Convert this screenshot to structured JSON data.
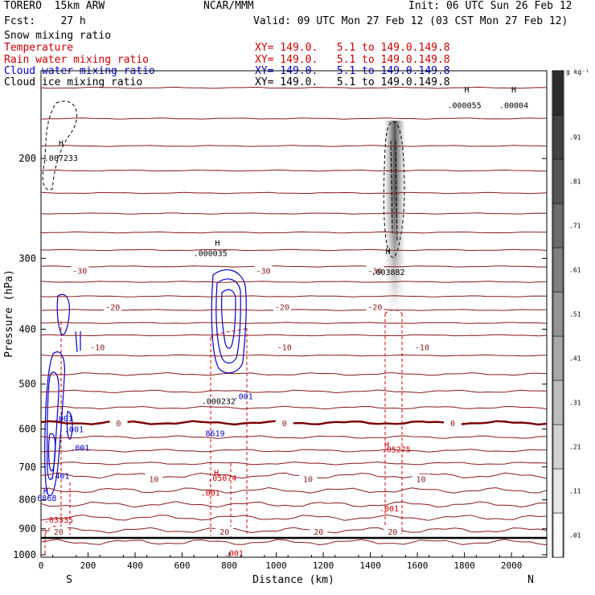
{
  "header": {
    "model": "TORERO  15km ARW",
    "forecast": "Fcst:    27 h",
    "center": "NCAR/MMM",
    "init": "Init: 06 UTC Sun 26 Feb 12",
    "valid": "Valid: 09 UTC Mon 27 Feb 12 (03 CST Mon 27 Feb 12)"
  },
  "fields": [
    {
      "name": "Snow mixing ratio",
      "xy": "",
      "color": "#000000"
    },
    {
      "name": "Temperature",
      "xy": "XY= 149.0.   5.1 to 149.0.149.8",
      "color": "#cc0000"
    },
    {
      "name": "Rain water mixing ratio",
      "xy": "XY= 149.0.   5.1 to 149.0.149.8",
      "color": "#cc0000"
    },
    {
      "name": "Cloud water mixing ratio",
      "xy": "XY= 149.0.   5.1 to 149.0.149.8",
      "color": "#0000cc"
    },
    {
      "name": "Cloud ice mixing ratio",
      "xy": "XY= 149.0.   5.1 to 149.0.149.8",
      "color": "#000000"
    }
  ],
  "chart_data": {
    "type": "cross-section",
    "xlabel": "Distance (km)",
    "ylabel": "Pressure (hPa)",
    "xlim": [
      0,
      2150
    ],
    "ylim": [
      1010,
      140
    ],
    "y_scale": "log",
    "xticks": [
      0,
      200,
      400,
      600,
      800,
      1000,
      1200,
      1400,
      1600,
      1800,
      2000
    ],
    "yticks": [
      200,
      300,
      400,
      500,
      600,
      700,
      800,
      900,
      1000
    ],
    "x_end_labels": {
      "left": "S",
      "right": "N"
    },
    "colorbar": {
      "unit": "g kg⁻¹",
      "levels": [
        ".01",
        ".11",
        ".21",
        ".31",
        ".41",
        ".51",
        ".61",
        ".71",
        ".81",
        ".91"
      ]
    },
    "temperature_contours": [
      {
        "label": "-30",
        "pressure": 315,
        "label_x": [
          165,
          945,
          1420
        ]
      },
      {
        "label": "-20",
        "pressure": 365,
        "label_x": [
          305,
          1025,
          1420
        ]
      },
      {
        "label": "-10",
        "pressure": 430,
        "label_x": [
          240,
          1035,
          1620
        ]
      },
      {
        "label": "0",
        "pressure": 585,
        "label_x": [
          330,
          1035,
          1750
        ]
      },
      {
        "label": "10",
        "pressure": 735,
        "label_x": [
          480,
          1135,
          1615
        ]
      },
      {
        "label": "20",
        "pressure": 910,
        "label_x": [
          75,
          780,
          1180,
          1495
        ]
      }
    ],
    "annotations": [
      {
        "text": "H",
        "x": 85,
        "p": 190,
        "color": "#000000"
      },
      {
        "text": ".007233",
        "x": 85,
        "p": 202,
        "color": "#000000"
      },
      {
        "text": "H",
        "x": 750,
        "p": 285,
        "color": "#000000"
      },
      {
        "text": ".000035",
        "x": 720,
        "p": 297,
        "color": "#000000"
      },
      {
        "text": "H",
        "x": 1475,
        "p": 295,
        "color": "#000000"
      },
      {
        "text": ".003882",
        "x": 1475,
        "p": 321,
        "color": "#000000"
      },
      {
        "text": "H",
        "x": 1810,
        "p": 153,
        "color": "#000000"
      },
      {
        "text": ".000055",
        "x": 1800,
        "p": 163,
        "color": "#000000"
      },
      {
        "text": "H",
        "x": 2010,
        "p": 153,
        "color": "#000000"
      },
      {
        "text": ".00004",
        "x": 2010,
        "p": 163,
        "color": "#000000"
      },
      {
        "text": ".000232",
        "x": 755,
        "p": 542,
        "color": "#000000"
      },
      {
        "text": ".001",
        "x": 860,
        "p": 532,
        "color": "#0000cc"
      },
      {
        "text": "8619",
        "x": 740,
        "p": 618,
        "color": "#0000cc"
      },
      {
        "text": ".001",
        "x": 95,
        "p": 582,
        "color": "#0000cc"
      },
      {
        "text": ".001",
        "x": 140,
        "p": 608,
        "color": "#0000cc"
      },
      {
        "text": ".001",
        "x": 165,
        "p": 655,
        "color": "#0000cc"
      },
      {
        "text": ".401",
        "x": 80,
        "p": 735,
        "color": "#0000cc"
      },
      {
        "text": "H",
        "x": 20,
        "p": 782,
        "color": "#0000cc"
      },
      {
        "text": "6868",
        "x": 25,
        "p": 803,
        "color": "#0000cc"
      },
      {
        "text": "H",
        "x": 745,
        "p": 725,
        "color": "#cc0000"
      },
      {
        "text": ".05074",
        "x": 770,
        "p": 740,
        "color": "#cc0000"
      },
      {
        "text": "H",
        "x": 1470,
        "p": 647,
        "color": "#cc0000"
      },
      {
        "text": ".05275",
        "x": 1510,
        "p": 660,
        "color": "#cc0000"
      },
      {
        "text": ".001",
        "x": 720,
        "p": 787,
        "color": "#cc0000"
      },
      {
        "text": ".001",
        "x": 1480,
        "p": 838,
        "color": "#cc0000"
      },
      {
        "text": ".001",
        "x": 820,
        "p": 1005,
        "color": "#cc0000"
      },
      {
        "text": ".03335",
        "x": 75,
        "p": 877,
        "color": "#cc0000"
      }
    ]
  }
}
